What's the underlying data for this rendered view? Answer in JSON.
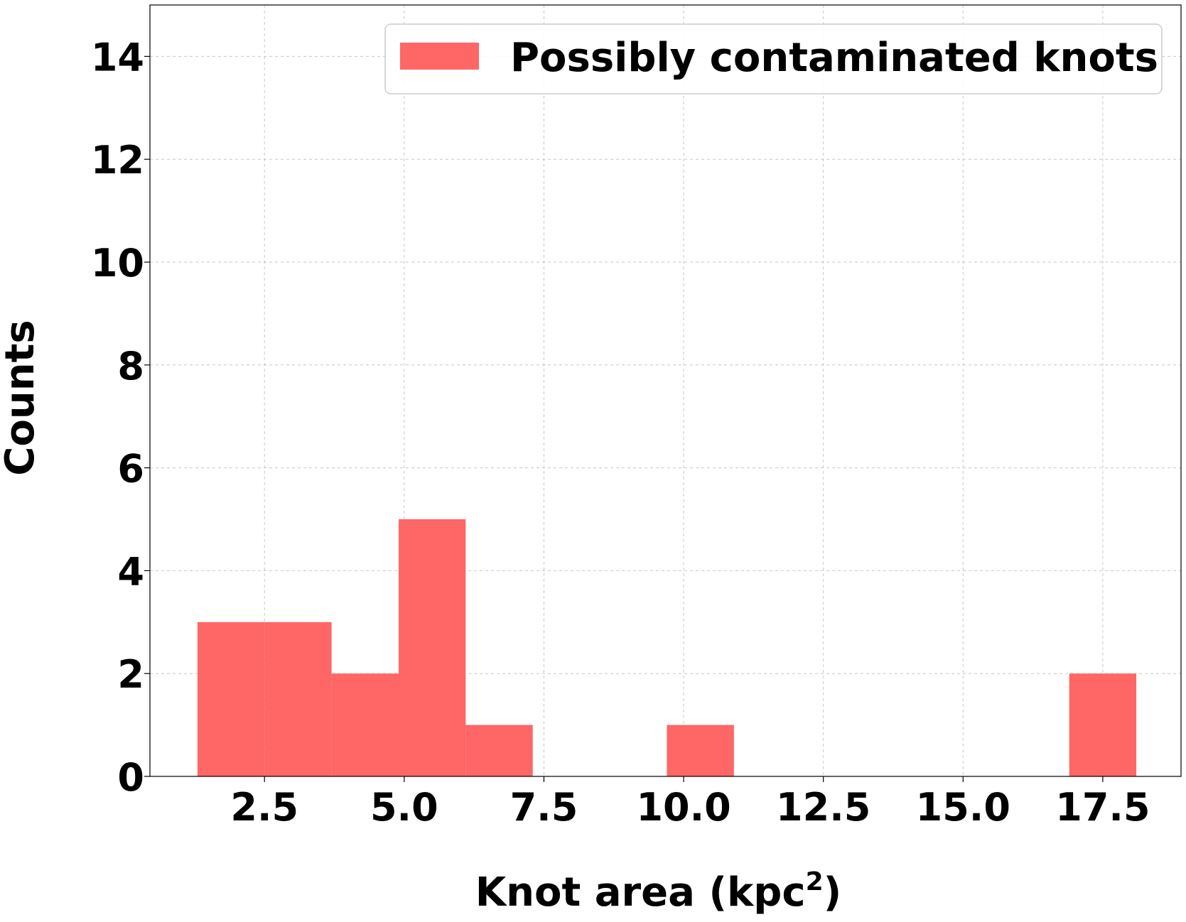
{
  "chart_data": {
    "type": "bar",
    "histogram": true,
    "bins": [
      {
        "x0": 1.3,
        "x1": 2.5,
        "count": 3
      },
      {
        "x0": 2.5,
        "x1": 3.7,
        "count": 3
      },
      {
        "x0": 3.7,
        "x1": 4.9,
        "count": 2
      },
      {
        "x0": 4.9,
        "x1": 6.1,
        "count": 5
      },
      {
        "x0": 6.1,
        "x1": 7.3,
        "count": 1
      },
      {
        "x0": 7.3,
        "x1": 8.5,
        "count": 0
      },
      {
        "x0": 8.5,
        "x1": 9.7,
        "count": 0
      },
      {
        "x0": 9.7,
        "x1": 10.9,
        "count": 1
      },
      {
        "x0": 10.9,
        "x1": 12.1,
        "count": 0
      },
      {
        "x0": 12.1,
        "x1": 13.3,
        "count": 0
      },
      {
        "x0": 13.3,
        "x1": 14.5,
        "count": 0
      },
      {
        "x0": 14.5,
        "x1": 15.7,
        "count": 0
      },
      {
        "x0": 15.7,
        "x1": 16.9,
        "count": 0
      },
      {
        "x0": 16.9,
        "x1": 18.1,
        "count": 2
      }
    ],
    "xlabel": "Knot area (kpc",
    "xlabel_sup": "2",
    "xlabel_end": ")",
    "ylabel": "Counts",
    "xlim": [
      0.45,
      18.9
    ],
    "ylim": [
      0,
      15
    ],
    "xticks": [
      2.5,
      5.0,
      7.5,
      10.0,
      12.5,
      15.0,
      17.5
    ],
    "xtick_labels": [
      "2.5",
      "5.0",
      "7.5",
      "10.0",
      "12.5",
      "15.0",
      "17.5"
    ],
    "yticks": [
      0,
      2,
      4,
      6,
      8,
      10,
      12,
      14
    ],
    "ytick_labels": [
      "0",
      "2",
      "4",
      "6",
      "8",
      "10",
      "12",
      "14"
    ],
    "grid": true,
    "legend": {
      "placement": "top-right",
      "entries": [
        "Possibly contaminated knots"
      ]
    },
    "bar_color": "#ff6666"
  }
}
